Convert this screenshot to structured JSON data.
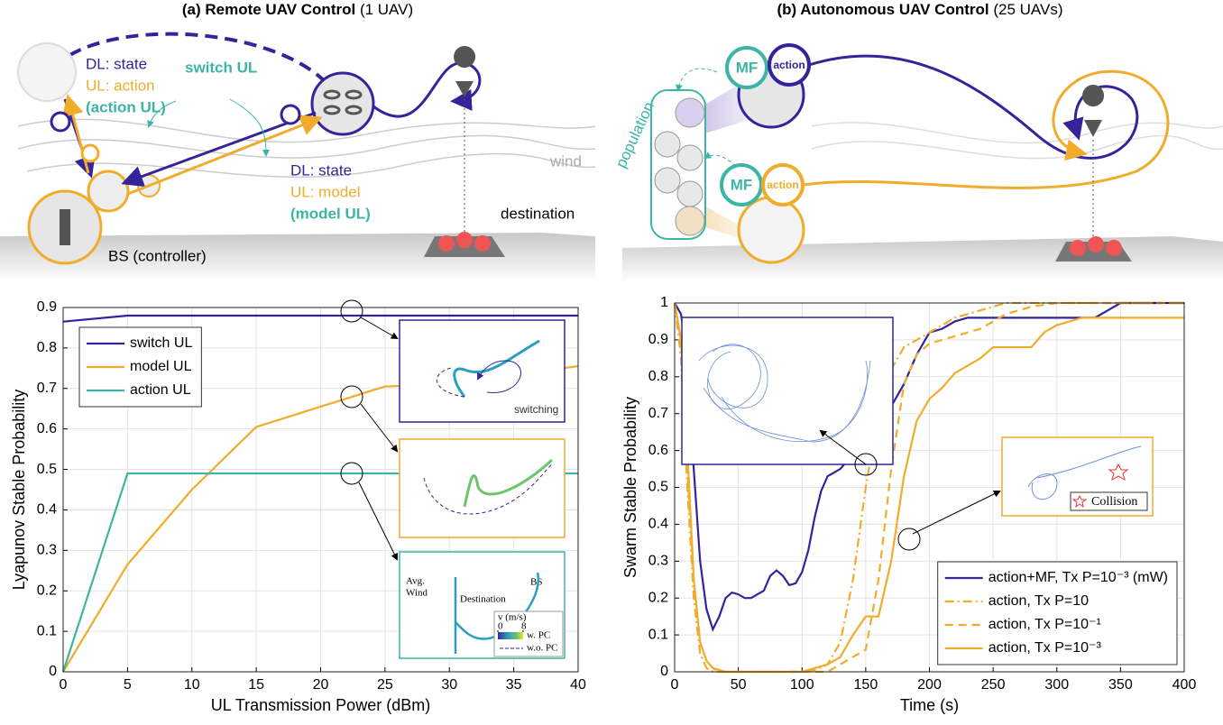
{
  "panels": [
    {
      "title_bold": "(a) Remote UAV Control",
      "title_rest": "(1 UAV)",
      "labels": [
        "DL: state",
        "UL: action",
        "(action UL)",
        "switch UL",
        "DL: state",
        "UL: model",
        "(model UL)",
        "wind",
        "destination",
        "BS (controller)"
      ]
    },
    {
      "title_bold": "(b) Autonomous UAV Control",
      "title_rest": "(25 UAVs)",
      "labels": [
        "MF",
        "action",
        "MF",
        "action",
        "population"
      ]
    }
  ],
  "chart_data": [
    {
      "type": "line",
      "xlabel": "UL Transmission Power (dBm)",
      "ylabel": "Lyapunov Stable Probability",
      "x": [
        0,
        5,
        10,
        15,
        20,
        25,
        30,
        35,
        40
      ],
      "xlim": [
        0,
        40
      ],
      "xticks": [
        0,
        5,
        10,
        15,
        20,
        25,
        30,
        35,
        40
      ],
      "ylim": [
        0,
        0.9
      ],
      "yticks": [
        0,
        0.1,
        0.2,
        0.3,
        0.4,
        0.5,
        0.6,
        0.7,
        0.8,
        0.9
      ],
      "grid": true,
      "legend": "upper left",
      "series": [
        {
          "name": "switch UL",
          "color": "#34239a",
          "values": [
            0.865,
            0.88,
            0.88,
            0.88,
            0.88,
            0.88,
            0.88,
            0.88,
            0.88
          ]
        },
        {
          "name": "model UL",
          "color": "#f0ac2a",
          "values": [
            0,
            0.265,
            0.45,
            0.605,
            0.655,
            0.705,
            0.71,
            0.735,
            0.755
          ]
        },
        {
          "name": "action UL",
          "color": "#3bb5a4",
          "values": [
            0,
            0.49,
            0.49,
            0.49,
            0.49,
            0.49,
            0.49,
            0.49,
            0.49
          ]
        }
      ],
      "annotations": [
        "switching",
        "Avg.",
        "Wind",
        "Destination",
        "BS",
        "w. PC",
        "w.o. PC"
      ],
      "colorbar": {
        "title": "v (m/s)",
        "ticks": [
          0,
          8
        ]
      }
    },
    {
      "type": "line",
      "xlabel": "Time (s)",
      "ylabel": "Swarm Stable Probability",
      "xlim": [
        0,
        400
      ],
      "xticks": [
        0,
        50,
        100,
        150,
        200,
        250,
        300,
        350,
        400
      ],
      "ylim": [
        0,
        1
      ],
      "yticks": [
        0,
        0.1,
        0.2,
        0.3,
        0.4,
        0.5,
        0.6,
        0.7,
        0.8,
        0.9,
        1
      ],
      "grid": true,
      "legend": "lower right",
      "series": [
        {
          "name": "action+MF, Tx P=10⁻³ (mW)",
          "color": "#34239a",
          "dash": "solid",
          "x": [
            0,
            5,
            10,
            15,
            20,
            25,
            30,
            35,
            40,
            45,
            50,
            55,
            60,
            65,
            70,
            75,
            80,
            85,
            90,
            95,
            100,
            105,
            110,
            115,
            120,
            125,
            130,
            135,
            140,
            145,
            150,
            160,
            170,
            180,
            190,
            200,
            210,
            220,
            230,
            240,
            250,
            300,
            330,
            340,
            350,
            400
          ],
          "values": [
            1,
            0.97,
            0.85,
            0.55,
            0.3,
            0.17,
            0.115,
            0.15,
            0.2,
            0.215,
            0.21,
            0.2,
            0.2,
            0.21,
            0.22,
            0.26,
            0.275,
            0.26,
            0.235,
            0.24,
            0.27,
            0.33,
            0.42,
            0.49,
            0.53,
            0.54,
            0.55,
            0.57,
            0.59,
            0.63,
            0.68,
            0.7,
            0.72,
            0.78,
            0.86,
            0.92,
            0.93,
            0.95,
            0.96,
            0.96,
            0.96,
            0.96,
            0.96,
            0.98,
            1,
            1
          ]
        },
        {
          "name": "action, Tx P=10",
          "color": "#f0ac2a",
          "dash": "dashdot",
          "x": [
            0,
            5,
            10,
            15,
            20,
            25,
            30,
            100,
            110,
            120,
            130,
            140,
            150,
            160,
            170,
            180,
            190,
            200,
            220,
            240,
            260,
            400
          ],
          "values": [
            1,
            0.85,
            0.5,
            0.2,
            0.05,
            0.01,
            0,
            0,
            0.005,
            0.02,
            0.08,
            0.25,
            0.5,
            0.7,
            0.82,
            0.88,
            0.9,
            0.92,
            0.96,
            0.98,
            1,
            1
          ]
        },
        {
          "name": "action, Tx P=10⁻¹",
          "color": "#f0ac2a",
          "dash": "dashed",
          "x": [
            0,
            5,
            10,
            15,
            20,
            25,
            30,
            35,
            120,
            130,
            140,
            150,
            160,
            170,
            180,
            190,
            200,
            220,
            240,
            260,
            280,
            300,
            400
          ],
          "values": [
            1,
            0.9,
            0.55,
            0.25,
            0.08,
            0.03,
            0.01,
            0,
            0,
            0.02,
            0.04,
            0.06,
            0.25,
            0.55,
            0.78,
            0.86,
            0.89,
            0.91,
            0.93,
            0.97,
            0.99,
            1,
            1
          ]
        },
        {
          "name": "action, Tx P=10⁻³",
          "color": "#f0ac2a",
          "dash": "solid",
          "x": [
            0,
            5,
            10,
            15,
            20,
            25,
            30,
            40,
            100,
            110,
            120,
            130,
            140,
            150,
            160,
            170,
            180,
            190,
            200,
            210,
            220,
            230,
            240,
            250,
            280,
            290,
            300,
            320,
            330,
            400
          ],
          "values": [
            1,
            0.9,
            0.6,
            0.25,
            0.08,
            0.03,
            0.01,
            0,
            0,
            0.01,
            0.02,
            0.04,
            0.1,
            0.15,
            0.15,
            0.3,
            0.53,
            0.68,
            0.74,
            0.77,
            0.81,
            0.83,
            0.85,
            0.88,
            0.88,
            0.92,
            0.94,
            0.96,
            0.96,
            0.96
          ]
        }
      ],
      "annotations": [
        "Collision"
      ]
    }
  ]
}
